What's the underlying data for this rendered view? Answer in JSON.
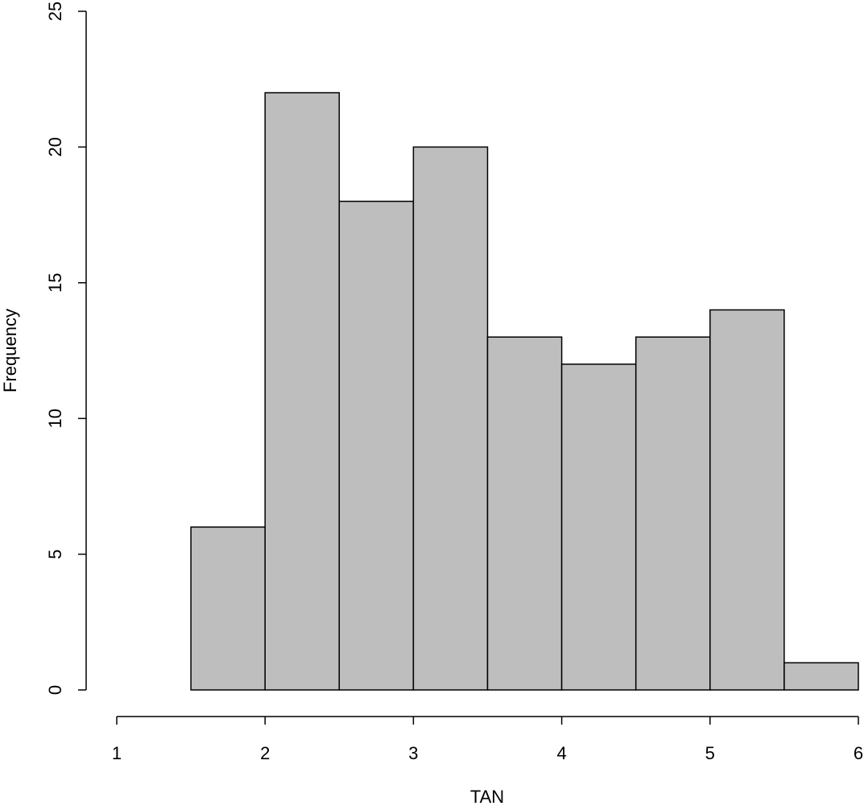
{
  "chart_data": {
    "type": "histogram",
    "x_label": "TAN",
    "y_label": "Frequency",
    "bins": [
      1.5,
      2,
      2.5,
      3,
      3.5,
      4,
      4.5,
      5,
      5.5,
      6
    ],
    "values": [
      6,
      22,
      18,
      20,
      13,
      12,
      13,
      14,
      1
    ],
    "color": "#bebebe",
    "xlim": [
      1,
      6
    ],
    "xticks": [
      1,
      2,
      3,
      4,
      5,
      6
    ],
    "ylim": [
      0,
      25
    ],
    "yticks": [
      0,
      5,
      10,
      15,
      20,
      25
    ]
  }
}
